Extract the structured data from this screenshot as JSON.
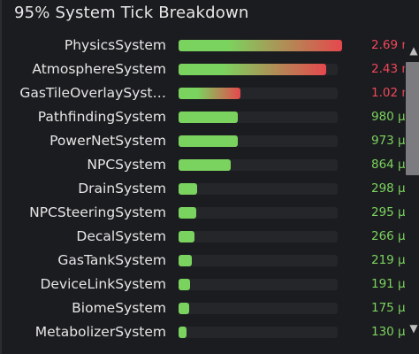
{
  "panel": {
    "title": "95% System Tick Breakdown"
  },
  "colors": {
    "green": "#7bd35f",
    "red": "#e5484d",
    "value_green": "#7bd35f",
    "value_red": "#f0475b"
  },
  "rows": [
    {
      "label": "PhysicsSystem",
      "value": "2.69 m",
      "fraction": 1.0,
      "tone": "red"
    },
    {
      "label": "AtmosphereSystem",
      "value": "2.43 m",
      "fraction": 0.903,
      "tone": "red"
    },
    {
      "label": "GasTileOverlaySyst…",
      "value": "1.02 m",
      "fraction": 0.379,
      "tone": "red"
    },
    {
      "label": "PathfindingSystem",
      "value": "980 μ",
      "fraction": 0.364,
      "tone": "green"
    },
    {
      "label": "PowerNetSystem",
      "value": "973 μ",
      "fraction": 0.362,
      "tone": "green"
    },
    {
      "label": "NPCSystem",
      "value": "864 μ",
      "fraction": 0.321,
      "tone": "green"
    },
    {
      "label": "DrainSystem",
      "value": "298 μ",
      "fraction": 0.111,
      "tone": "green"
    },
    {
      "label": "NPCSteeringSystem",
      "value": "295 μ",
      "fraction": 0.11,
      "tone": "green"
    },
    {
      "label": "DecalSystem",
      "value": "266 μ",
      "fraction": 0.099,
      "tone": "green"
    },
    {
      "label": "GasTankSystem",
      "value": "219 μ",
      "fraction": 0.081,
      "tone": "green"
    },
    {
      "label": "DeviceLinkSystem",
      "value": "191 μ",
      "fraction": 0.071,
      "tone": "green"
    },
    {
      "label": "BiomeSystem",
      "value": "175 μ",
      "fraction": 0.065,
      "tone": "green"
    },
    {
      "label": "MetabolizerSystem",
      "value": "130 μ",
      "fraction": 0.048,
      "tone": "green"
    }
  ],
  "scrollbar": {
    "up_icon": "▲",
    "down_icon": "▼",
    "position": 0.0
  }
}
